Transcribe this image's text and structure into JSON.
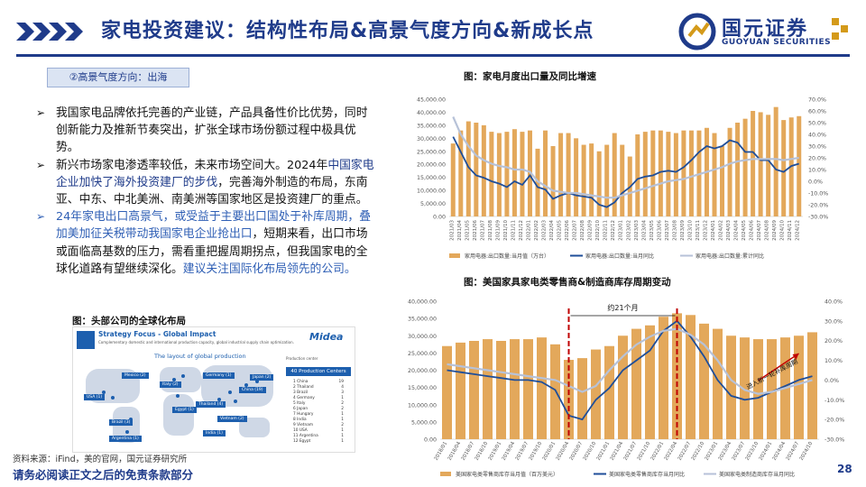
{
  "header": {
    "title": "家电投资建议：结构性布局&高景气度方向&新成长点",
    "logo_cn": "国元证券",
    "logo_en": "GUOYUAN SECURITIES"
  },
  "tag": "②高景气度方向：出海",
  "bullets": [
    {
      "marker": "➢",
      "text": "我国家电品牌依托完善的产业链，产品具备性价比优势，同时创新能力及推新节奏突出，扩张全球市场份额过程中极具优势。"
    },
    {
      "marker": "➢",
      "pre": "新兴市场家电渗透率较低，未来市场空间大。2024年",
      "hl": "中国家电企业加快了海外投资建厂的步伐",
      "post": "，完善海外制造的布局，东南亚、中东、中北美洲、南美洲等国家地区是投资建厂的重点。"
    },
    {
      "marker": "➢",
      "blue": "24年家电出口高景气，或受益于主要出口国处于补库周期，叠加美加征关税带动我国家电企业抢出口",
      "post": "，短期来看，出口市场或面临高基数的压力，需看重把握周期拐点，但我国家电的全球化道路有望继续深化。",
      "blue2": "建议关注国际化布局领先的公司。"
    }
  ],
  "fig_left_caption": "图：头部公司的全球化布局",
  "midea": {
    "heading": "Strategy Focus - Global Impact",
    "sub": "Complementary domestic and international production capacity, global industrial supply chain optimization.",
    "brand": "Midea",
    "map_title": "The layout of global production",
    "centers_label": "40 Production Centers",
    "legend_label": "Production center",
    "regions": [
      "USA (1)",
      "Brazil (3)",
      "Argentina (1)",
      "Egypt (1)",
      "Italy (2)",
      "Germany (1)",
      "Thailand (4)",
      "Vietnam (2)",
      "China (19)",
      "Japan (2)",
      "India (1)",
      "Mexico (2)"
    ],
    "countries": [
      "China",
      "Thailand",
      "Brazil",
      "Germany",
      "Italy",
      "Japan",
      "Hungary",
      "India",
      "Vietnam",
      "USA",
      "Argentina",
      "Egypt"
    ],
    "counts": [
      "19",
      "4",
      "3",
      "1",
      "2",
      "2",
      "1",
      "1",
      "2",
      "1",
      "1",
      "1"
    ]
  },
  "source": "资料来源：iFind，美的官网，国元证券研究所",
  "footer": "请务必阅读正文之后的免责条款部分",
  "page": "28",
  "chart_data": [
    {
      "type": "bar",
      "title": "图：家电月度出口量及同比增速",
      "categories": [
        "2021/03",
        "2021/04",
        "2021/05",
        "2021/06",
        "2021/07",
        "2021/08",
        "2021/09",
        "2021/10",
        "2021/11",
        "2021/12",
        "2022/01",
        "2022/02",
        "2022/03",
        "2022/04",
        "2022/05",
        "2022/06",
        "2022/07",
        "2022/08",
        "2022/09",
        "2022/10",
        "2022/11",
        "2022/12",
        "2023/01",
        "2023/02",
        "2023/03",
        "2023/04",
        "2023/05",
        "2023/06",
        "2023/07",
        "2023/08",
        "2023/09",
        "2023/10",
        "2023/11",
        "2023/12",
        "2024/01",
        "2024/02",
        "2024/03",
        "2024/04",
        "2024/05",
        "2024/06",
        "2024/07",
        "2024/08",
        "2024/09",
        "2024/10",
        "2024/11",
        "2024/12"
      ],
      "series": [
        {
          "name": "家用电器:出口数量:当月值（万台）",
          "axis": "left",
          "values": [
            28000,
            33000,
            36500,
            36000,
            35000,
            32500,
            32000,
            32500,
            33500,
            32500,
            33000,
            26000,
            33000,
            27000,
            32000,
            32000,
            30000,
            27500,
            28000,
            25000,
            27500,
            32000,
            27500,
            23000,
            31500,
            32500,
            33000,
            33000,
            32500,
            32000,
            33000,
            33000,
            33000,
            34000,
            32000,
            27000,
            34000,
            36000,
            37500,
            40500,
            40000,
            39000,
            42000,
            37000,
            38000,
            38500
          ]
        },
        {
          "name": "家用电器:出口数量:当月同比",
          "axis": "right",
          "values": [
            38,
            25,
            12,
            5,
            3,
            0,
            -2,
            -5,
            0,
            -3,
            5,
            -5,
            -7,
            -15,
            -12,
            -10,
            -12,
            -13,
            -14,
            -20,
            -22,
            -18,
            -10,
            -5,
            2,
            4,
            5,
            8,
            9,
            8,
            12,
            18,
            25,
            30,
            28,
            30,
            35,
            33,
            25,
            25,
            18,
            18,
            10,
            8,
            13,
            15
          ]
        },
        {
          "name": "家用电器:出口数量:累计同比",
          "axis": "right",
          "values": [
            55,
            40,
            30,
            22,
            18,
            15,
            13,
            12,
            10,
            10,
            8,
            0,
            -4,
            -8,
            -9,
            -10,
            -10,
            -11,
            -12,
            -13,
            -14,
            -14,
            -12,
            -10,
            -8,
            -6,
            -4,
            -2,
            0,
            1,
            2,
            4,
            6,
            8,
            10,
            12,
            15,
            17,
            18,
            19,
            19,
            19,
            19,
            18,
            19,
            20
          ]
        }
      ],
      "ylim_left": [
        0,
        45000
      ],
      "ylim_right": [
        -30,
        70
      ]
    },
    {
      "type": "bar",
      "title": "图：美国家具家电类零售商&制造商库存周期变动",
      "categories": [
        "2018/01",
        "2018/04",
        "2018/07",
        "2018/10",
        "2019/01",
        "2019/04",
        "2019/07",
        "2019/10",
        "2020/01",
        "2020/04",
        "2020/07",
        "2020/10",
        "2021/01",
        "2021/04",
        "2021/07",
        "2021/10",
        "2022/01",
        "2022/04",
        "2022/07",
        "2022/10",
        "2023/01",
        "2023/04",
        "2023/07",
        "2023/10",
        "2024/01",
        "2024/04",
        "2024/07",
        "2024/10"
      ],
      "series": [
        {
          "name": "美国家电类零售商库存当月值（百万美元）",
          "axis": "left",
          "values": [
            27000,
            28000,
            28500,
            29000,
            28500,
            29000,
            29000,
            29500,
            27500,
            23000,
            23500,
            26000,
            27000,
            30000,
            32000,
            33000,
            35500,
            36500,
            36000,
            33500,
            32000,
            30000,
            29500,
            29000,
            29000,
            29500,
            30000,
            31000
          ]
        },
        {
          "name": "美国家电类零售商库存当月同比",
          "axis": "right",
          "values": [
            5,
            4,
            3,
            2,
            1,
            0,
            0,
            -1,
            -5,
            -18,
            -20,
            -10,
            -4,
            5,
            10,
            15,
            25,
            30,
            22,
            12,
            0,
            -8,
            -10,
            -9,
            -6,
            -3,
            0,
            2
          ]
        },
        {
          "name": "美国家电类制造商库存当月同比",
          "axis": "right",
          "values": [
            8,
            7,
            6,
            5,
            4,
            3,
            2,
            1,
            0,
            -3,
            -6,
            -3,
            5,
            12,
            18,
            22,
            25,
            26,
            23,
            18,
            10,
            0,
            -5,
            -7,
            -6,
            -4,
            -2,
            0
          ]
        }
      ],
      "ylim_left": [
        0,
        40000
      ],
      "ylim_right": [
        -30,
        40
      ],
      "annotations": [
        "约21个月",
        "进入新一轮补库周期"
      ]
    }
  ]
}
